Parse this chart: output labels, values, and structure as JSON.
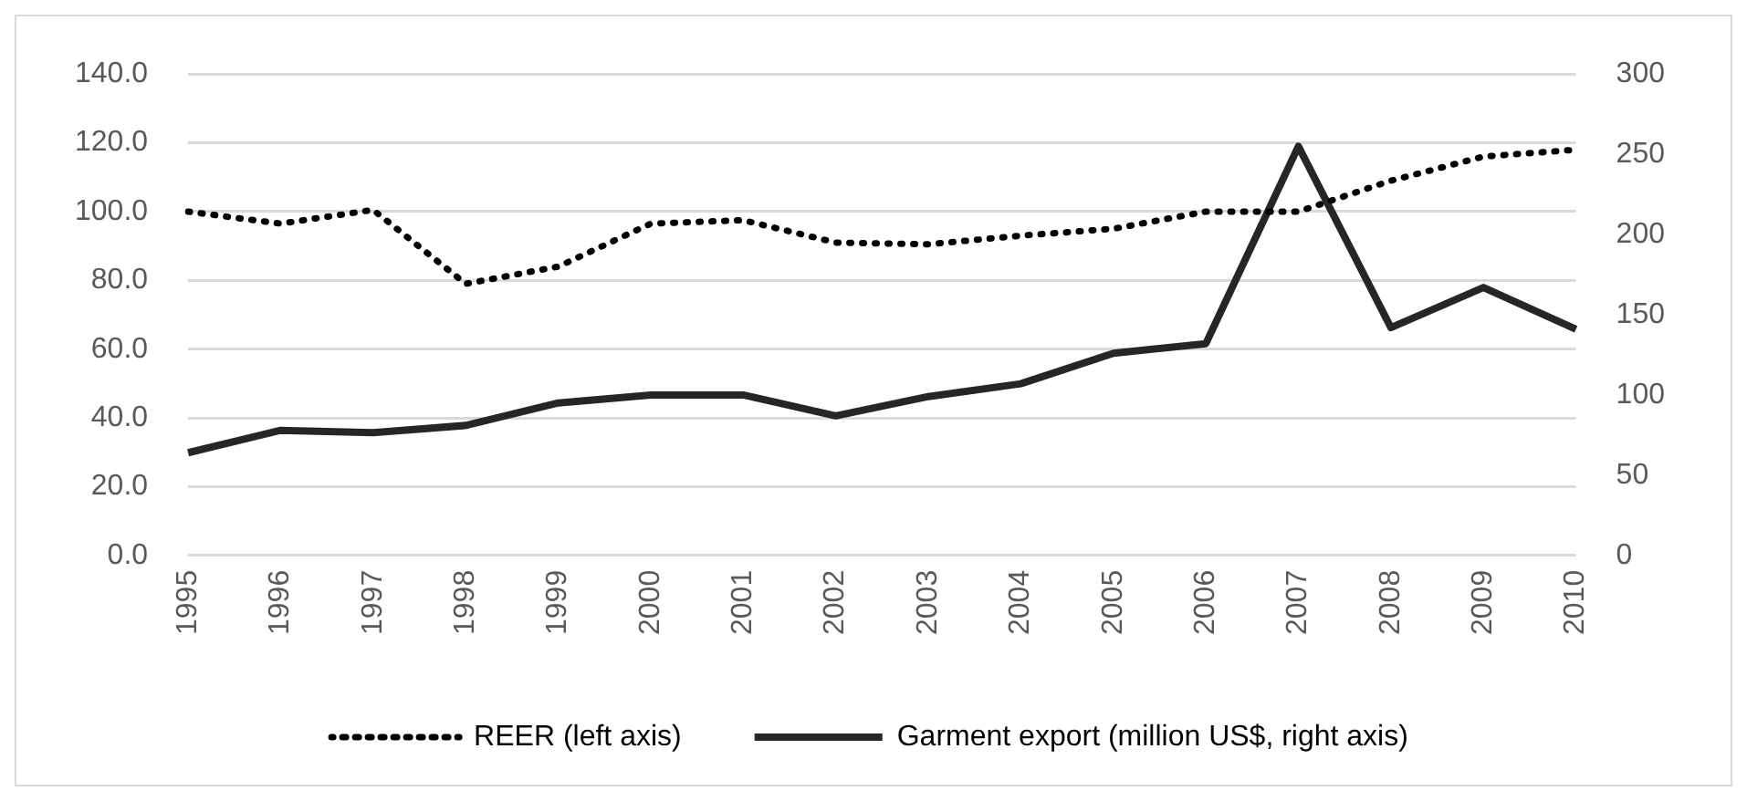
{
  "chart_data": {
    "type": "line",
    "categories": [
      "1995",
      "1996",
      "1997",
      "1998",
      "1999",
      "2000",
      "2001",
      "2002",
      "2003",
      "2004",
      "2005",
      "2006",
      "2007",
      "2008",
      "2009",
      "2010"
    ],
    "series": [
      {
        "name": "REER (left axis)",
        "color": "#000000",
        "line_style": "dotted",
        "values": [
          100,
          96.5,
          100.5,
          79,
          84,
          96.5,
          97.5,
          91,
          90.5,
          93,
          95,
          100,
          100,
          109,
          116,
          118
        ]
      },
      {
        "name": "Garment export (million US$, right axis)",
        "color": "#262626",
        "line_style": "solid",
        "axis": "y2",
        "values": [
          64,
          78,
          76.5,
          81,
          95,
          100,
          100,
          87,
          99,
          107,
          126,
          132,
          255,
          142,
          167,
          141
        ]
      }
    ],
    "ylim": [
      0,
      140
    ],
    "yticks": [
      {
        "value": 0,
        "label": "0.0"
      },
      {
        "value": 20,
        "label": "20.0"
      },
      {
        "value": 40,
        "label": "40.0"
      },
      {
        "value": 60,
        "label": "60.0"
      },
      {
        "value": 80,
        "label": "80.0"
      },
      {
        "value": 100,
        "label": "100.0"
      },
      {
        "value": 120,
        "label": "120.0"
      },
      {
        "value": 140,
        "label": "140.0"
      }
    ],
    "y2lim": [
      0,
      300
    ],
    "y2ticks": [
      0,
      50,
      100,
      150,
      200,
      250,
      300
    ],
    "grid": "y",
    "legend": "bottom",
    "marker": "none"
  }
}
